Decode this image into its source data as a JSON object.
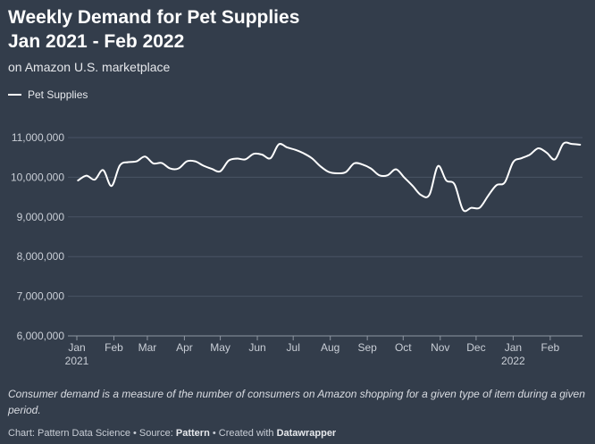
{
  "header": {
    "title_line1": "Weekly Demand for Pet Supplies",
    "title_line2": "Jan 2021 - Feb 2022",
    "subtitle": "on Amazon U.S. marketplace"
  },
  "legend": {
    "label": "Pet Supplies",
    "color": "#ffffff"
  },
  "chart_data": {
    "type": "line",
    "title": "Weekly Demand for Pet Supplies Jan 2021 - Feb 2022",
    "ylim": [
      6000000,
      11000000
    ],
    "yticks": [
      6000000,
      7000000,
      8000000,
      9000000,
      10000000,
      11000000
    ],
    "ytick_labels": [
      "6,000,000",
      "7,000,000",
      "8,000,000",
      "9,000,000",
      "10,000,000",
      "11,000,000"
    ],
    "xlim": [
      "2021-01-01",
      "2022-02-28"
    ],
    "xticks": [
      "2021-01-01",
      "2021-02-01",
      "2021-03-01",
      "2021-04-01",
      "2021-05-01",
      "2021-06-01",
      "2021-07-01",
      "2021-08-01",
      "2021-09-01",
      "2021-10-01",
      "2021-11-01",
      "2021-12-01",
      "2022-01-01",
      "2022-02-01"
    ],
    "xtick_labels": [
      "Jan",
      "Feb",
      "Mar",
      "Apr",
      "May",
      "Jun",
      "Jul",
      "Aug",
      "Sep",
      "Oct",
      "Nov",
      "Dec",
      "Jan",
      "Feb"
    ],
    "xtick_years": [
      "2021",
      "",
      "",
      "",
      "",
      "",
      "",
      "",
      "",
      "",
      "",
      "",
      "2022",
      ""
    ],
    "grid": true,
    "series": [
      {
        "name": "Pet Supplies",
        "color": "#ffffff",
        "x": [
          "2021-01-02",
          "2021-01-09",
          "2021-01-16",
          "2021-01-23",
          "2021-01-30",
          "2021-02-06",
          "2021-02-13",
          "2021-02-20",
          "2021-02-27",
          "2021-03-06",
          "2021-03-13",
          "2021-03-20",
          "2021-03-27",
          "2021-04-03",
          "2021-04-10",
          "2021-04-17",
          "2021-04-24",
          "2021-05-01",
          "2021-05-08",
          "2021-05-15",
          "2021-05-22",
          "2021-05-29",
          "2021-06-05",
          "2021-06-12",
          "2021-06-19",
          "2021-06-26",
          "2021-07-03",
          "2021-07-10",
          "2021-07-17",
          "2021-07-24",
          "2021-07-31",
          "2021-08-07",
          "2021-08-14",
          "2021-08-21",
          "2021-08-28",
          "2021-09-04",
          "2021-09-11",
          "2021-09-18",
          "2021-09-25",
          "2021-10-02",
          "2021-10-09",
          "2021-10-16",
          "2021-10-23",
          "2021-10-30",
          "2021-11-06",
          "2021-11-13",
          "2021-11-20",
          "2021-11-27",
          "2021-12-04",
          "2021-12-11",
          "2021-12-18",
          "2021-12-25",
          "2022-01-01",
          "2022-01-08",
          "2022-01-15",
          "2022-01-22",
          "2022-01-29",
          "2022-02-05",
          "2022-02-12",
          "2022-02-19",
          "2022-02-26"
        ],
        "y": [
          9920000,
          10040000,
          9940000,
          10180000,
          9780000,
          10300000,
          10380000,
          10400000,
          10520000,
          10350000,
          10360000,
          10220000,
          10220000,
          10400000,
          10400000,
          10290000,
          10210000,
          10150000,
          10420000,
          10470000,
          10450000,
          10590000,
          10570000,
          10480000,
          10830000,
          10750000,
          10690000,
          10600000,
          10470000,
          10270000,
          10130000,
          10100000,
          10130000,
          10350000,
          10320000,
          10220000,
          10050000,
          10050000,
          10200000,
          9990000,
          9780000,
          9550000,
          9560000,
          10280000,
          9920000,
          9820000,
          9180000,
          9230000,
          9230000,
          9530000,
          9800000,
          9870000,
          10380000,
          10480000,
          10570000,
          10730000,
          10620000,
          10450000,
          10850000,
          10840000,
          10820000
        ]
      }
    ]
  },
  "note": "Consumer demand is a measure of the number of consumers on Amazon shopping for a given type of item during a given period.",
  "footer": {
    "chart_prefix": "Chart: Pattern Data Science • Source: ",
    "source": "Pattern",
    "created_prefix": " • Created with ",
    "tool": "Datawrapper"
  }
}
